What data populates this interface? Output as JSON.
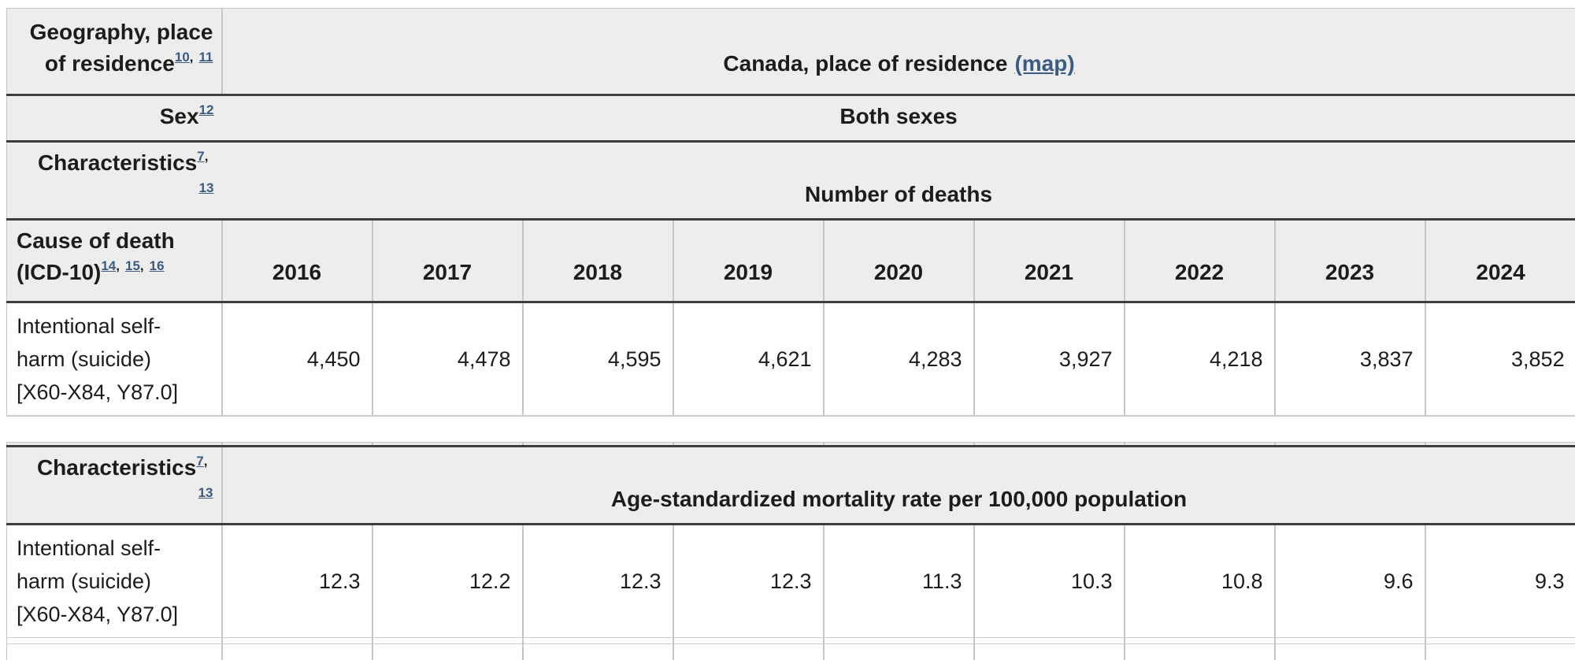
{
  "colors": {
    "link": "#3a5c82",
    "header_bg": "#ededed",
    "dark_border": "#3e3e3e",
    "light_border": "#c6c6c6",
    "text": "#1c1c1c"
  },
  "sep": ",",
  "table1": {
    "meta_rows": [
      {
        "stub_label": "Geography, place of residence",
        "stub_sups": [
          "10",
          "11"
        ],
        "value": "Canada, place of residence",
        "value_link": "(map)"
      },
      {
        "stub_label": "Sex",
        "stub_sups": [
          "12"
        ],
        "value": "Both sexes"
      },
      {
        "stub_label": "Characteristics",
        "stub_sups": [
          "7",
          "13"
        ],
        "value": "Number of deaths"
      }
    ],
    "column_header": {
      "stub_line1": "Cause of death",
      "stub_line2": "(ICD-10)",
      "stub_sups": [
        "14",
        "15",
        "16"
      ],
      "years": [
        "2016",
        "2017",
        "2018",
        "2019",
        "2020",
        "2021",
        "2022",
        "2023",
        "2024"
      ]
    },
    "data_rows": [
      {
        "label_lines": [
          "Intentional self-",
          "harm (suicide)",
          "[X60-X84, Y87.0]"
        ],
        "values": [
          "4,450",
          "4,478",
          "4,595",
          "4,621",
          "4,283",
          "3,927",
          "4,218",
          "3,837",
          "3,852"
        ]
      }
    ]
  },
  "table2": {
    "meta_rows": [
      {
        "stub_label": "Characteristics",
        "stub_sups": [
          "7",
          "13"
        ],
        "value": "Age-standardized mortality rate per 100,000 population"
      }
    ],
    "data_rows": [
      {
        "label_lines": [
          "Intentional self-",
          "harm (suicide)",
          "[X60-X84, Y87.0]"
        ],
        "values": [
          "12.3",
          "12.2",
          "12.3",
          "12.3",
          "11.3",
          "10.3",
          "10.8",
          "9.6",
          "9.3"
        ]
      }
    ]
  }
}
